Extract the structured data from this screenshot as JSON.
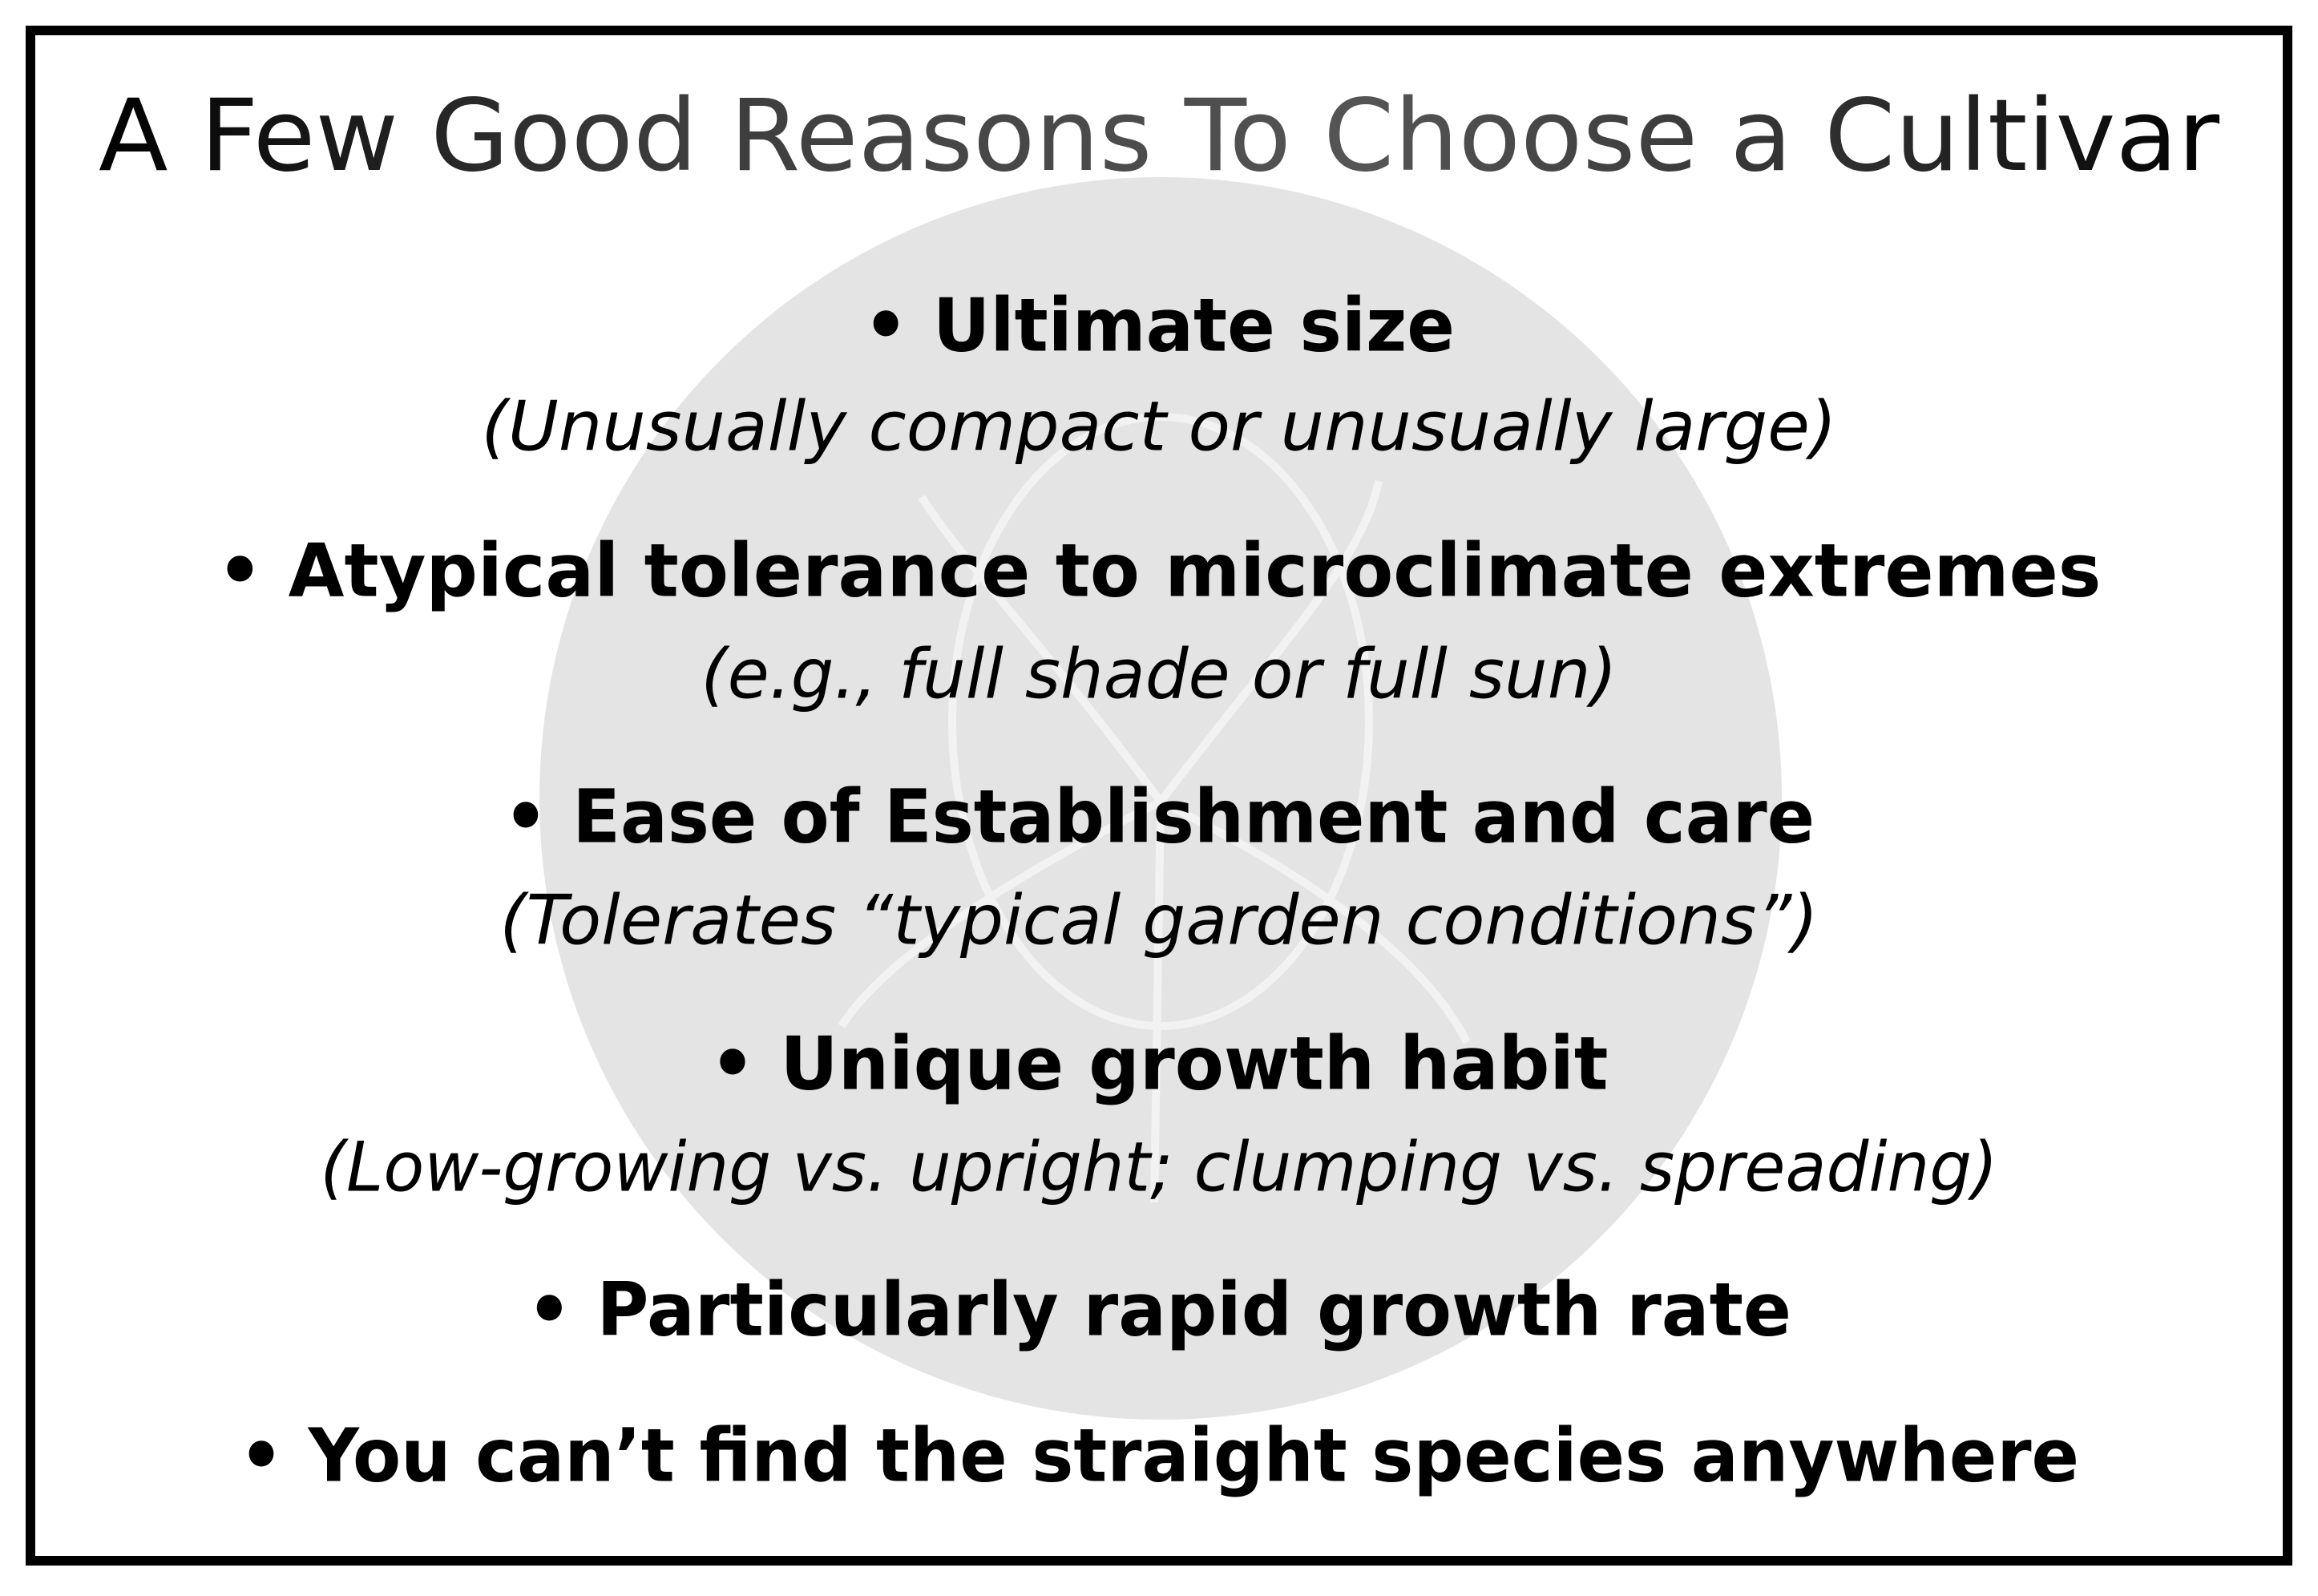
{
  "title": "A Few Good Reasons To Choose a Cultivar",
  "items": [
    {
      "heading": "• Ultimate size",
      "detail": "(Unusually compact or unusually large)"
    },
    {
      "heading": "• Atypical tolerance to microclimate extremes",
      "detail": "(e.g., full shade or full sun)"
    },
    {
      "heading": "• Ease of Establishment and care",
      "detail": "(Tolerates “typical garden conditions”)"
    },
    {
      "heading": "• Unique growth habit",
      "detail": "(Low-growing vs. upright; clumping vs. spreading)"
    },
    {
      "heading": "• Particularly rapid growth rate"
    },
    {
      "heading": "• You can’t find the straight species anywhere"
    }
  ]
}
